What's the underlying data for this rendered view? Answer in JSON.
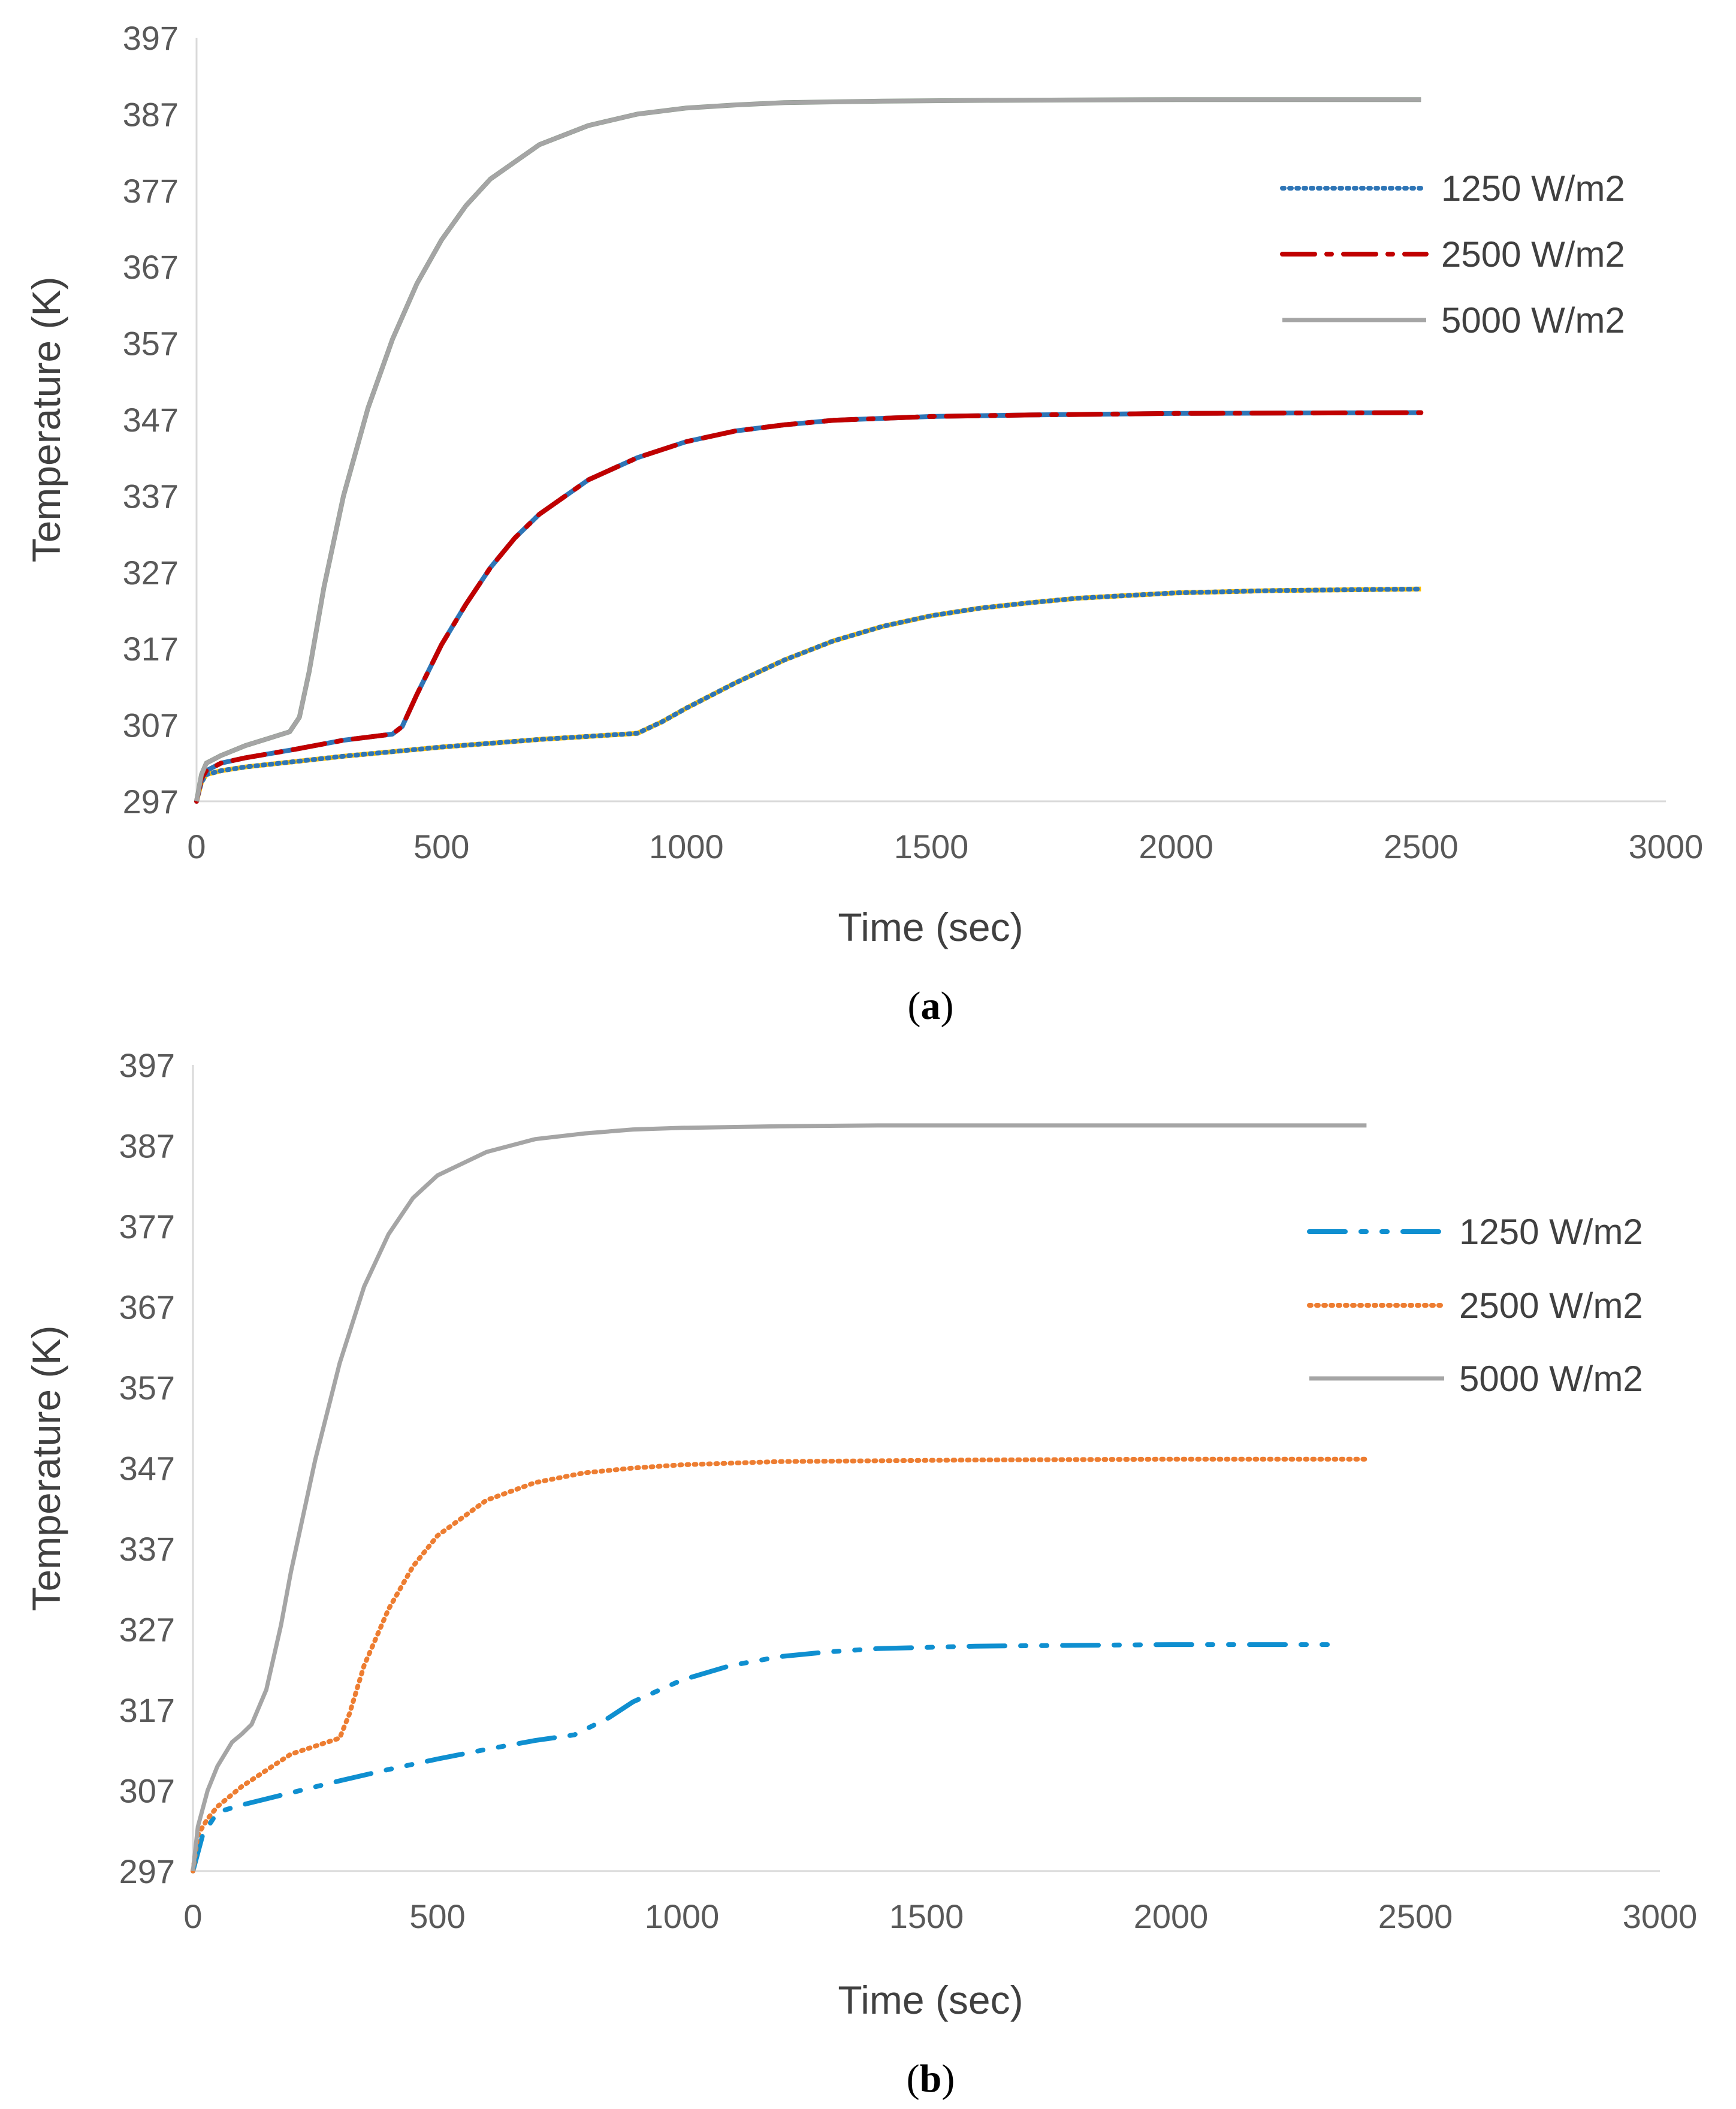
{
  "chart_data": [
    {
      "id": "a",
      "type": "line",
      "caption_open": "(",
      "caption_label": "a",
      "caption_close": ")",
      "xlabel": "Time (sec)",
      "ylabel": "Temperature (K)",
      "xlim": [
        0,
        3000
      ],
      "ylim": [
        297,
        397
      ],
      "xticks": [
        0,
        500,
        1000,
        1500,
        2000,
        2500,
        3000
      ],
      "yticks": [
        297,
        307,
        317,
        327,
        337,
        347,
        357,
        367,
        377,
        387,
        397
      ],
      "grid": false,
      "legend": "right",
      "series": [
        {
          "name": "1250 W/m2",
          "color": "#2e75b6",
          "style": "dotted",
          "overlay_color": "#ffc000",
          "x": [
            0,
            10,
            20,
            50,
            100,
            200,
            300,
            400,
            500,
            600,
            700,
            800,
            900,
            950,
            1000,
            1100,
            1200,
            1300,
            1400,
            1500,
            1600,
            1700,
            1800,
            2000,
            2200,
            2500
          ],
          "y": [
            297,
            299.5,
            300.5,
            301.0,
            301.5,
            302.2,
            302.9,
            303.5,
            304.1,
            304.6,
            305.1,
            305.5,
            305.9,
            307.4,
            309.2,
            312.5,
            315.5,
            318.0,
            319.9,
            321.3,
            322.3,
            323.0,
            323.6,
            324.3,
            324.6,
            324.8
          ]
        },
        {
          "name": "2500 W/m2",
          "color": "#c00000",
          "style": "dashdot",
          "overlay_color": "#2e75b6",
          "x": [
            0,
            10,
            20,
            50,
            100,
            200,
            300,
            400,
            420,
            450,
            500,
            550,
            600,
            650,
            700,
            800,
            900,
            1000,
            1100,
            1200,
            1300,
            1500,
            1700,
            2000,
            2500
          ],
          "y": [
            297,
            300,
            301,
            302,
            302.7,
            303.8,
            305.0,
            305.8,
            306.8,
            311.0,
            317.5,
            322.8,
            327.6,
            331.5,
            334.6,
            339.1,
            342.0,
            344.1,
            345.5,
            346.3,
            346.9,
            347.4,
            347.6,
            347.8,
            347.9
          ]
        },
        {
          "name": "5000 W/m2",
          "color": "#a5a5a5",
          "style": "solid",
          "overlay_color": "#8a9a8a",
          "x": [
            0,
            10,
            20,
            50,
            100,
            150,
            190,
            210,
            230,
            260,
            300,
            350,
            400,
            450,
            500,
            550,
            600,
            700,
            800,
            900,
            1000,
            1100,
            1200,
            1400,
            1600,
            2000,
            2500
          ],
          "y": [
            297,
            300.5,
            302,
            303,
            304.3,
            305.3,
            306.1,
            308,
            314,
            325,
            337,
            348.5,
            357.5,
            364.8,
            370.5,
            375.0,
            378.5,
            383.0,
            385.5,
            387.0,
            387.8,
            388.2,
            388.5,
            388.7,
            388.8,
            388.9,
            388.9
          ]
        }
      ]
    },
    {
      "id": "b",
      "type": "line",
      "caption_open": "(",
      "caption_label": "b",
      "caption_close": ")",
      "xlabel": "Time (sec)",
      "ylabel": "Temperature (K)",
      "xlim": [
        0,
        3000
      ],
      "ylim": [
        297,
        397
      ],
      "xticks": [
        0,
        500,
        1000,
        1500,
        2000,
        2500,
        3000
      ],
      "yticks": [
        297,
        307,
        317,
        327,
        337,
        347,
        357,
        367,
        377,
        387,
        397
      ],
      "grid": false,
      "legend": "right",
      "series": [
        {
          "name": "1250 W/m2",
          "color": "#0f8fd0",
          "style": "dashdotdot",
          "x": [
            0,
            20,
            50,
            100,
            200,
            300,
            400,
            500,
            600,
            700,
            780,
            850,
            900,
            1000,
            1100,
            1200,
            1300,
            1400,
            1600,
            1800,
            2000,
            2200,
            2350
          ],
          "y": [
            297,
            301.5,
            304.3,
            305.2,
            306.7,
            308.2,
            309.6,
            310.9,
            312.1,
            313.2,
            313.9,
            316.0,
            318.0,
            320.7,
            322.5,
            323.6,
            324.2,
            324.6,
            324.9,
            325.0,
            325.1,
            325.1,
            325.1
          ]
        },
        {
          "name": "2500 W/m2",
          "color": "#ed7d31",
          "style": "dotted",
          "x": [
            0,
            10,
            30,
            50,
            100,
            200,
            300,
            320,
            350,
            400,
            450,
            500,
            600,
            700,
            800,
            900,
            1000,
            1100,
            1200,
            1400,
            1600,
            2000,
            2400
          ],
          "y": [
            297,
            301.5,
            303.5,
            305,
            307.5,
            311.5,
            313.5,
            316.5,
            322.5,
            329.5,
            334.8,
            338.6,
            343.0,
            345.2,
            346.4,
            347.0,
            347.4,
            347.6,
            347.8,
            347.9,
            348.0,
            348.1,
            348.1
          ]
        },
        {
          "name": "5000 W/m2",
          "color": "#a5a5a5",
          "style": "solid",
          "x": [
            0,
            10,
            30,
            50,
            80,
            100,
            120,
            150,
            180,
            200,
            250,
            300,
            350,
            400,
            450,
            500,
            600,
            700,
            800,
            900,
            1000,
            1200,
            1400,
            1800,
            2400
          ],
          "y": [
            297,
            302.5,
            307,
            310,
            313,
            314.0,
            315.2,
            319.5,
            327.5,
            334,
            348,
            360,
            369.5,
            376.0,
            380.5,
            383.3,
            386.2,
            387.8,
            388.5,
            389.0,
            389.2,
            389.4,
            389.5,
            389.5,
            389.5
          ]
        }
      ]
    }
  ]
}
